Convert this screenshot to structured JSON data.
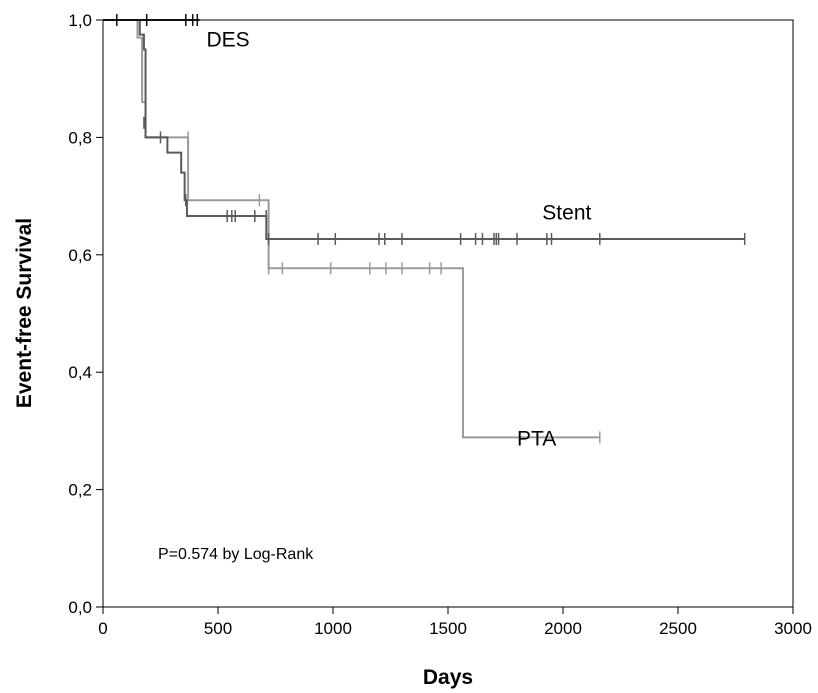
{
  "chart_data": {
    "type": "line",
    "step": true,
    "title": "",
    "xlabel": "Days",
    "ylabel": "Event-free Survival",
    "xlim": [
      0,
      3000
    ],
    "ylim": [
      0,
      1
    ],
    "x_ticks": [
      0,
      500,
      1000,
      1500,
      2000,
      2500,
      3000
    ],
    "x_tick_labels": [
      "0",
      "500",
      "1000",
      "1500",
      "2000",
      "2500",
      "3000"
    ],
    "y_ticks": [
      0,
      0.2,
      0.4,
      0.6,
      0.8,
      1.0
    ],
    "y_tick_labels": [
      "0,0",
      "0,2",
      "0,4",
      "0,6",
      "0,8",
      "1,0"
    ],
    "grid": false,
    "annotation": "P=0.574 by Log-Rank",
    "series": [
      {
        "name": "PTA",
        "color": "#9a9a9a",
        "label_position": [
          1800,
          0.275
        ],
        "steps": [
          [
            0,
            1.0
          ],
          [
            150,
            0.97
          ],
          [
            170,
            0.86
          ],
          [
            185,
            0.8
          ],
          [
            370,
            0.693
          ],
          [
            720,
            0.577
          ],
          [
            1565,
            0.289
          ],
          [
            2160,
            0.289
          ]
        ],
        "censored": [
          [
            370,
            0.8
          ],
          [
            680,
            0.693
          ],
          [
            720,
            0.577
          ],
          [
            780,
            0.577
          ],
          [
            990,
            0.577
          ],
          [
            1160,
            0.577
          ],
          [
            1230,
            0.577
          ],
          [
            1300,
            0.577
          ],
          [
            1420,
            0.577
          ],
          [
            1470,
            0.577
          ],
          [
            2160,
            0.289
          ]
        ]
      },
      {
        "name": "Stent",
        "color": "#5a5a5a",
        "label_position": [
          1910,
          0.66
        ],
        "steps": [
          [
            0,
            1.0
          ],
          [
            160,
            0.975
          ],
          [
            178,
            0.95
          ],
          [
            185,
            0.8
          ],
          [
            280,
            0.774
          ],
          [
            340,
            0.74
          ],
          [
            355,
            0.693
          ],
          [
            365,
            0.666
          ],
          [
            710,
            0.627
          ],
          [
            2790,
            0.627
          ]
        ],
        "censored": [
          [
            178,
            0.825
          ],
          [
            250,
            0.8
          ],
          [
            360,
            0.693
          ],
          [
            540,
            0.666
          ],
          [
            560,
            0.666
          ],
          [
            575,
            0.666
          ],
          [
            660,
            0.666
          ],
          [
            710,
            0.666
          ],
          [
            720,
            0.627
          ],
          [
            935,
            0.627
          ],
          [
            1010,
            0.627
          ],
          [
            1200,
            0.627
          ],
          [
            1225,
            0.627
          ],
          [
            1300,
            0.627
          ],
          [
            1555,
            0.627
          ],
          [
            1620,
            0.627
          ],
          [
            1650,
            0.627
          ],
          [
            1700,
            0.627
          ],
          [
            1710,
            0.627
          ],
          [
            1720,
            0.627
          ],
          [
            1800,
            0.627
          ],
          [
            1930,
            0.627
          ],
          [
            1950,
            0.627
          ],
          [
            2160,
            0.627
          ],
          [
            2790,
            0.627
          ]
        ]
      },
      {
        "name": "DES",
        "color": "#111111",
        "label_position": [
          450,
          0.955
        ],
        "steps": [
          [
            0,
            1.0
          ],
          [
            420,
            1.0
          ]
        ],
        "censored": [
          [
            60,
            1.0
          ],
          [
            190,
            1.0
          ],
          [
            360,
            1.0
          ],
          [
            390,
            1.0
          ],
          [
            410,
            1.0
          ]
        ]
      }
    ]
  }
}
